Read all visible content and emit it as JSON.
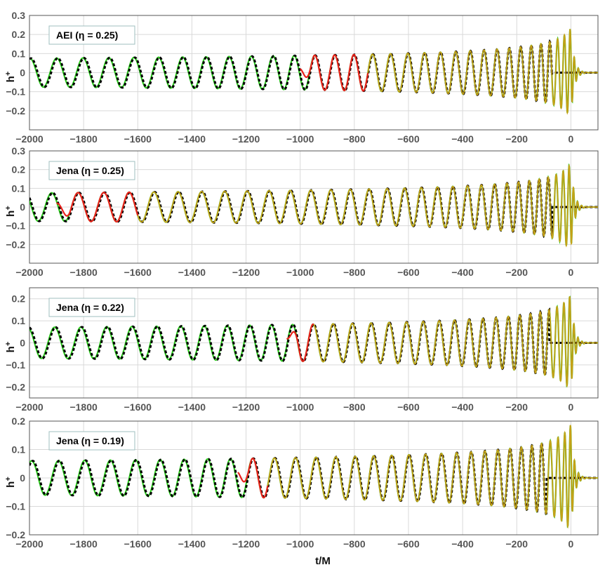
{
  "chart_data": {
    "type": "line",
    "xlabel": "t/M",
    "xlim": [
      -2000,
      100
    ],
    "x_ticks": [
      -2000,
      -1800,
      -1600,
      -1400,
      -1200,
      -1000,
      -800,
      -600,
      -400,
      -200,
      0
    ],
    "series_styles": {
      "numerical": {
        "color": "#2ecc1f",
        "dash": "solid"
      },
      "pn": {
        "color": "#000000",
        "dash": "dotted-thick"
      },
      "blend_window": {
        "color": "#e8211b",
        "dash": "solid"
      },
      "hybrid": {
        "color": "#c8a018",
        "dash": "solid"
      }
    },
    "panels": [
      {
        "label": "AEI (η = 0.25)",
        "ylabel": "h+",
        "ylim": [
          -0.3,
          0.3
        ],
        "y_ticks": [
          -0.2,
          -0.1,
          0,
          0.1,
          0.2,
          0.3
        ],
        "amplitude_start": 0.075,
        "amplitude_peak": 0.23,
        "pn_peak": 0.17,
        "pn_end": -70,
        "red_start": -1000,
        "red_end": -750,
        "nr_start": -1000,
        "phase": 0.0
      },
      {
        "label": "Jena (η = 0.25)",
        "ylabel": "h+",
        "ylim": [
          -0.3,
          0.3
        ],
        "y_ticks": [
          -0.2,
          -0.1,
          0,
          0.1,
          0.2,
          0.3
        ],
        "amplitude_start": 0.075,
        "amplitude_peak": 0.23,
        "pn_peak": 0.16,
        "pn_end": -70,
        "red_start": -1900,
        "red_end": -1600,
        "nr_start": -1900,
        "phase": 1.2
      },
      {
        "label": "Jena (η = 0.22)",
        "ylabel": "h+",
        "ylim": [
          -0.25,
          0.25
        ],
        "y_ticks": [
          -0.2,
          -0.1,
          0,
          0.1,
          0.2
        ],
        "amplitude_start": 0.07,
        "amplitude_peak": 0.22,
        "pn_peak": 0.15,
        "pn_end": -80,
        "red_start": -1050,
        "red_end": -950,
        "nr_start": -1050,
        "phase": 0.5
      },
      {
        "label": "Jena (η = 0.19)",
        "ylabel": "h+",
        "ylim": [
          -0.2,
          0.2
        ],
        "y_ticks": [
          -0.2,
          -0.1,
          0,
          0.1,
          0.2
        ],
        "amplitude_start": 0.06,
        "amplitude_peak": 0.19,
        "pn_peak": 0.13,
        "pn_end": -90,
        "red_start": -1230,
        "red_end": -1120,
        "nr_start": -1230,
        "phase": -0.4
      }
    ]
  }
}
